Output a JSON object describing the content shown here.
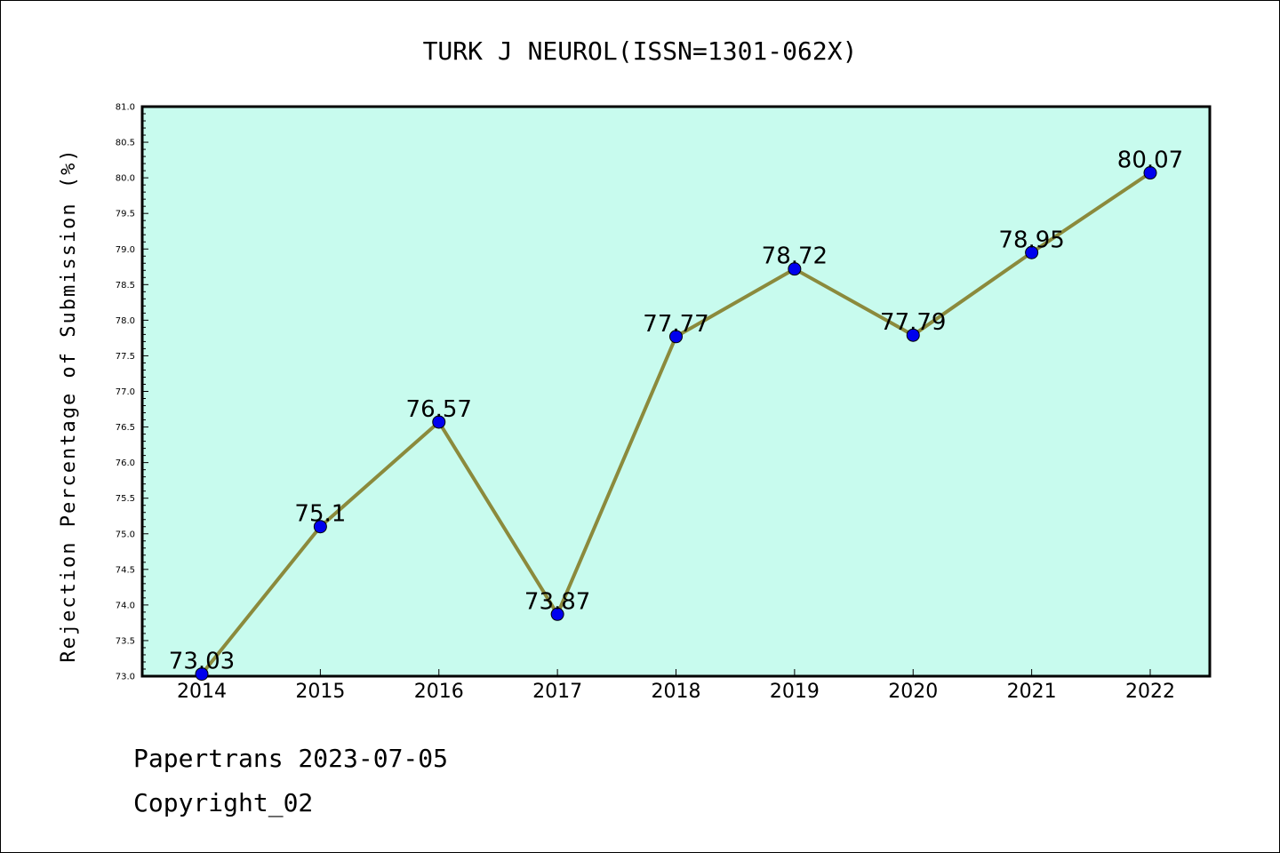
{
  "chart_data": {
    "type": "line",
    "title": "TURK J NEUROL(ISSN=1301-062X)",
    "ylabel": "Rejection Percentage of Submission (%)",
    "xlabel": "",
    "categories": [
      "2014",
      "2015",
      "2016",
      "2017",
      "2018",
      "2019",
      "2020",
      "2021",
      "2022"
    ],
    "values": [
      73.03,
      75.1,
      76.57,
      73.87,
      77.77,
      78.72,
      77.79,
      78.95,
      80.07
    ],
    "data_labels": [
      "73.03",
      "75.1",
      "76.57",
      "73.87",
      "77.77",
      "78.72",
      "77.79",
      "78.95",
      "80.07"
    ],
    "ylim": [
      73.0,
      81.0
    ],
    "yticks": [
      "73.0",
      "73.5",
      "74.0",
      "74.5",
      "75.0",
      "75.5",
      "76.0",
      "76.5",
      "77.0",
      "77.5",
      "78.0",
      "78.5",
      "79.0",
      "79.5",
      "80.0",
      "80.5",
      "81.0"
    ],
    "grid": false,
    "colors": {
      "plot_background": "#c8fbee",
      "line": "#8b8a3c",
      "marker": "#0000ee"
    }
  },
  "footer": {
    "line1": "Papertrans 2023-07-05",
    "line2": "Copyright_02"
  }
}
